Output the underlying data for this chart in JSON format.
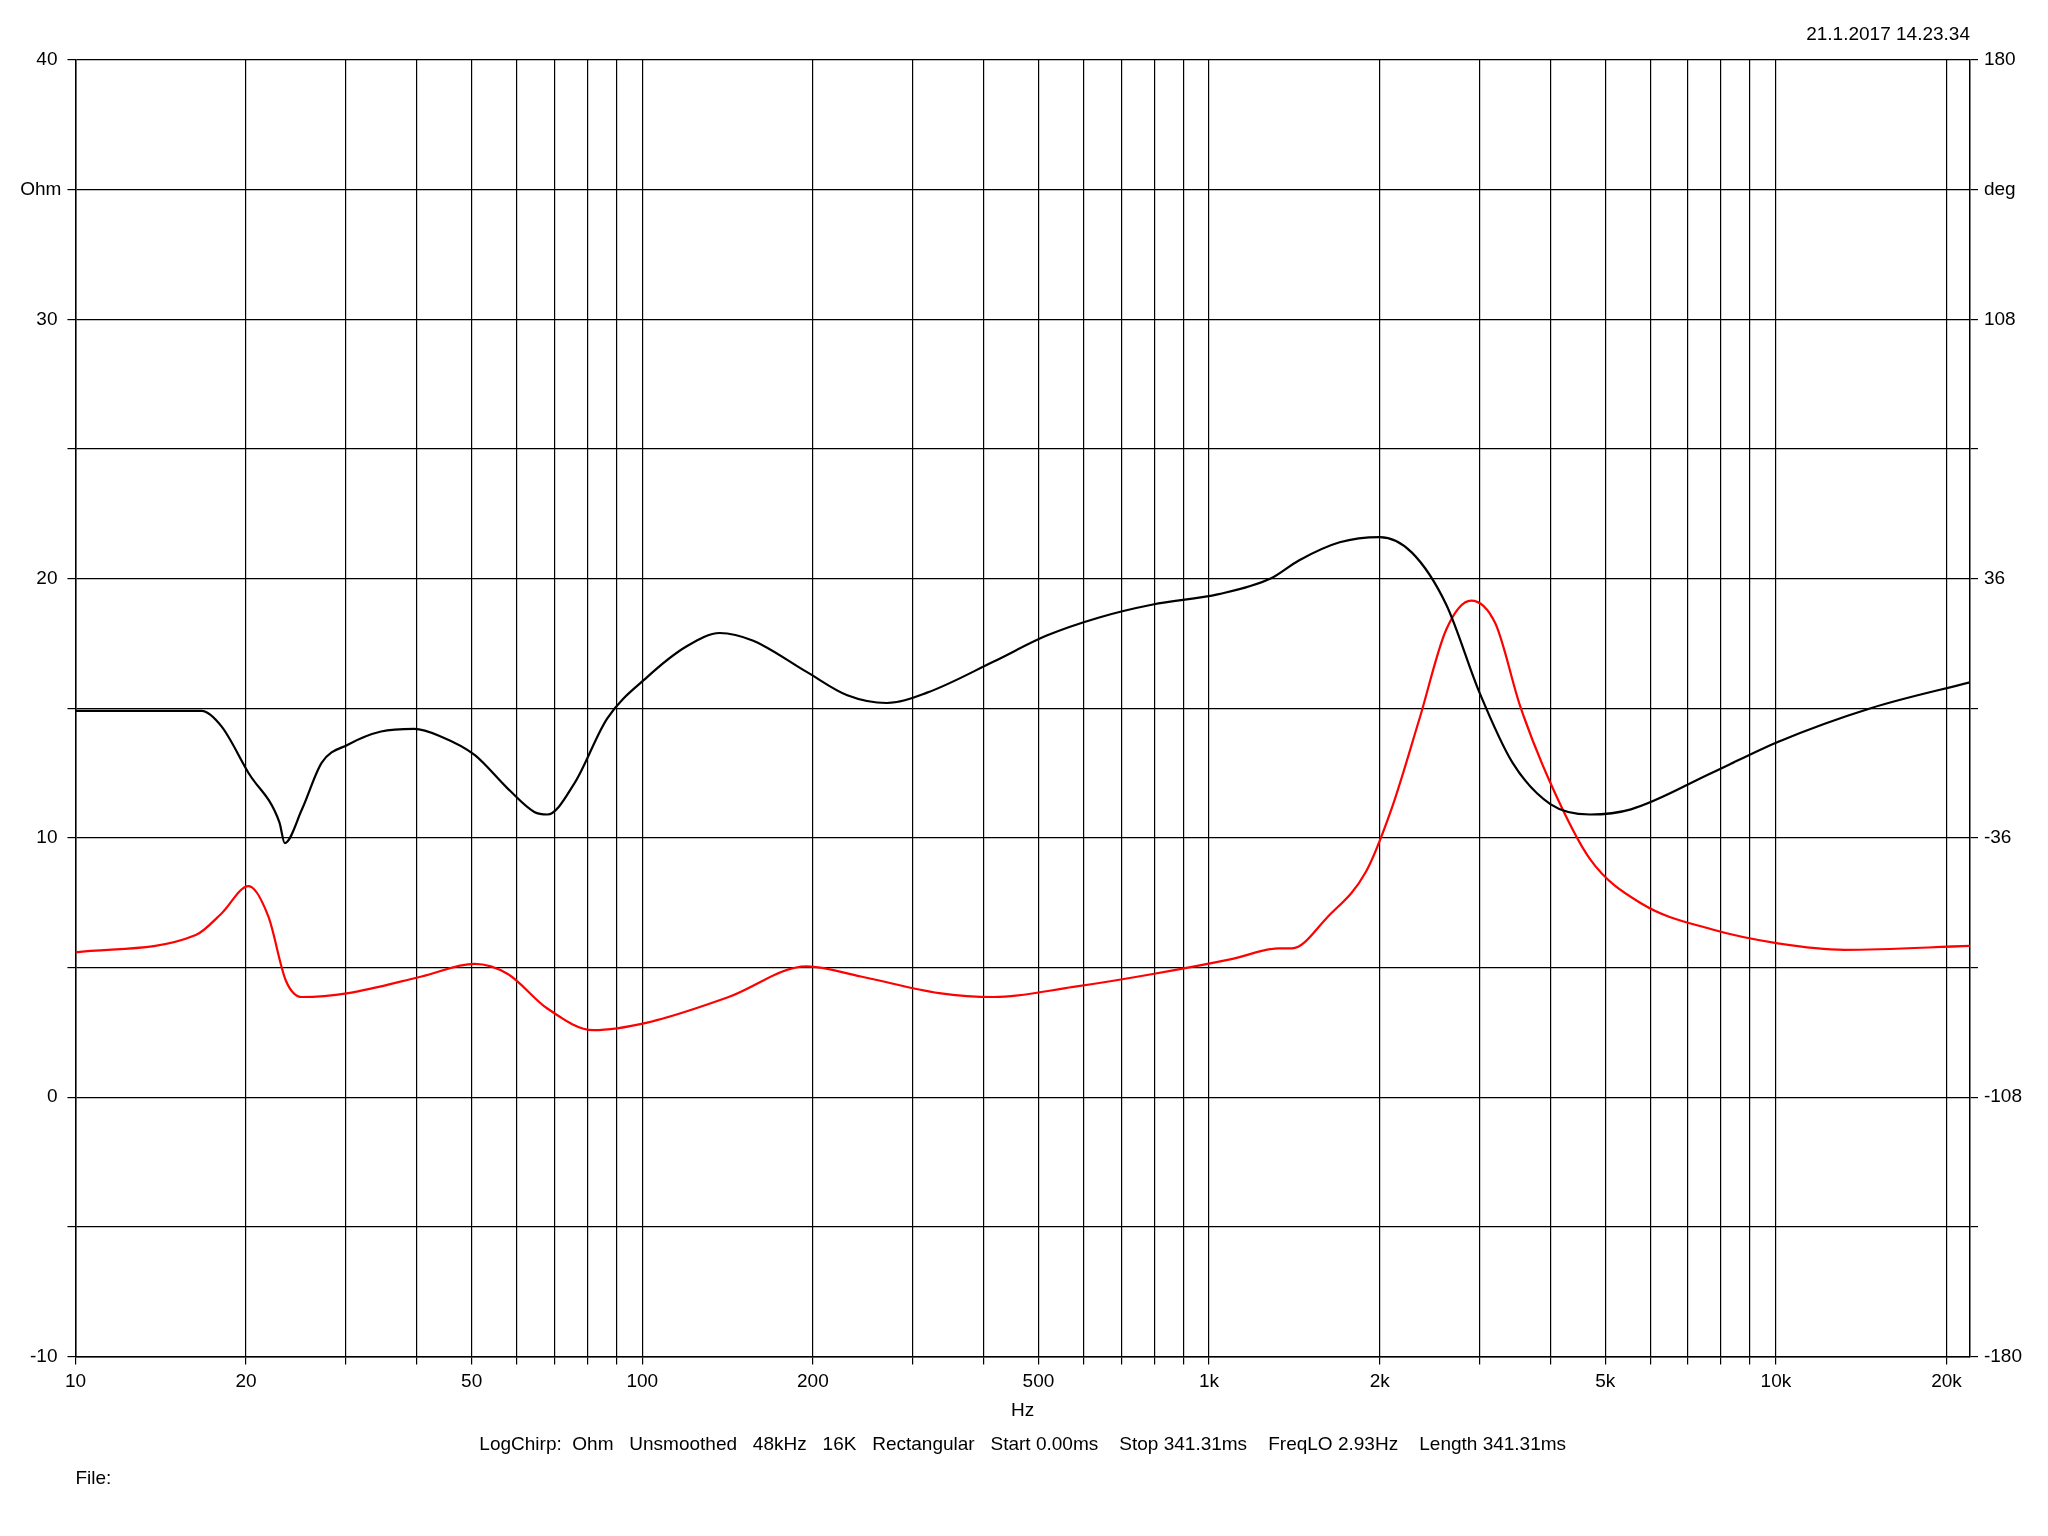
{
  "chart_data": {
    "type": "line",
    "xlabel": "Hz",
    "ylabel": "Ohm",
    "y2label": "deg",
    "annotations": [
      "21.1.2017 14.23.34",
      "LogChirp:  Ohm   Unsmoothed   48kHz   16K   Rectangular   Start 0.00ms    Stop 341.31ms    FreqLO 2.93Hz    Length 341.31ms",
      "File:"
    ],
    "log": "x",
    "grid": true,
    "legend": false,
    "marker": "none",
    "line_style": "solid",
    "xlim": [
      10,
      22000
    ],
    "xticks": [
      10,
      20,
      {
        "value": 30,
        "label": null
      },
      {
        "value": 40,
        "label": null
      },
      50,
      {
        "value": 60,
        "label": null
      },
      {
        "value": 70,
        "label": null
      },
      {
        "value": 80,
        "label": null
      },
      {
        "value": 90,
        "label": null
      },
      100,
      200,
      {
        "value": 300,
        "label": null
      },
      {
        "value": 400,
        "label": null
      },
      500,
      {
        "value": 600,
        "label": null
      },
      {
        "value": 700,
        "label": null
      },
      {
        "value": 800,
        "label": null
      },
      {
        "value": 900,
        "label": null
      },
      {
        "value": 1000,
        "label": "1k"
      },
      {
        "value": 2000,
        "label": "2k"
      },
      {
        "value": 3000,
        "label": null
      },
      {
        "value": 4000,
        "label": null
      },
      {
        "value": 5000,
        "label": "5k"
      },
      {
        "value": 6000,
        "label": null
      },
      {
        "value": 7000,
        "label": null
      },
      {
        "value": 8000,
        "label": null
      },
      {
        "value": 9000,
        "label": null
      },
      {
        "value": 10000,
        "label": "10k"
      },
      {
        "value": 20000,
        "label": "20k"
      }
    ],
    "ylim": [
      -10,
      40
    ],
    "yticks": [
      -10,
      {
        "value": -5,
        "label": null
      },
      0,
      {
        "value": 5,
        "label": null
      },
      10,
      {
        "value": 15,
        "label": null
      },
      20,
      {
        "value": 25,
        "label": null
      },
      30,
      {
        "value": 35,
        "label": null
      },
      40
    ],
    "y2lim": [
      -180,
      180
    ],
    "y2ticks": [
      -180,
      {
        "value": -144,
        "label": null
      },
      -108,
      {
        "value": -72,
        "label": null
      },
      -36,
      {
        "value": 0,
        "label": null
      },
      36,
      {
        "value": 72,
        "label": null
      },
      108,
      {
        "value": 144,
        "label": null
      },
      180
    ],
    "series": [
      {
        "color": "#000000",
        "x": [
          10,
          15.4,
          16.7,
          18.1,
          20.2,
          22.9,
          23.4,
          25.1,
          27.2,
          30.3,
          34.6,
          39.6,
          44.2,
          50.6,
          57.9,
          64.5,
          68,
          75.9,
          86.7,
          102,
          120,
          137,
          157,
          195,
          230,
          270,
          318,
          417,
          517,
          640,
          796,
          1040,
          1284,
          1440,
          1700,
          2000,
          2280,
          2620,
          3000,
          3430,
          4000,
          4700,
          5550,
          7700,
          10080,
          14700,
          22000
        ],
        "values": [
          14.9,
          14.9,
          14.9,
          14.3,
          12.5,
          10.6,
          9.8,
          11.1,
          12.9,
          13.6,
          14.1,
          14.2,
          13.9,
          13.2,
          11.9,
          11.0,
          10.9,
          12.1,
          14.6,
          16.2,
          17.4,
          17.9,
          17.6,
          16.4,
          15.5,
          15.2,
          15.6,
          16.8,
          17.8,
          18.5,
          19.0,
          19.4,
          20.0,
          20.7,
          21.4,
          21.6,
          21.0,
          19.0,
          15.6,
          12.9,
          11.3,
          10.9,
          11.1,
          12.5,
          13.7,
          15.0,
          16.0
        ]
      },
      {
        "color": "#ff0000",
        "axis": "y2",
        "x": [
          10,
          16.3,
          18.1,
          20.2,
          21.9,
          23.5,
          25.1,
          30.3,
          40.8,
          50.6,
          57.9,
          68,
          82,
          102,
          142,
          195,
          243,
          334,
          417,
          576,
          796,
          1100,
          1328,
          1400,
          1620,
          1890,
          2100,
          2350,
          2620,
          2900,
          3200,
          3540,
          4000,
          4700,
          5800,
          7700,
          10080,
          13200,
          22000
        ],
        "values": [
          -67.8,
          -63,
          -57,
          -49.4,
          -57.9,
          -75.6,
          -80.2,
          -79.1,
          -74.5,
          -71,
          -73.8,
          -83.4,
          -89.4,
          -87.3,
          -80.2,
          -71.7,
          -74.5,
          -79.1,
          -80.2,
          -77.4,
          -73.8,
          -69.6,
          -66.7,
          -66.7,
          -57.9,
          -45.5,
          -27.8,
          -3,
          21.8,
          29.9,
          23.5,
          0.5,
          -20.7,
          -41.9,
          -54.3,
          -61.4,
          -65.3,
          -67.1,
          -66
        ]
      }
    ]
  }
}
